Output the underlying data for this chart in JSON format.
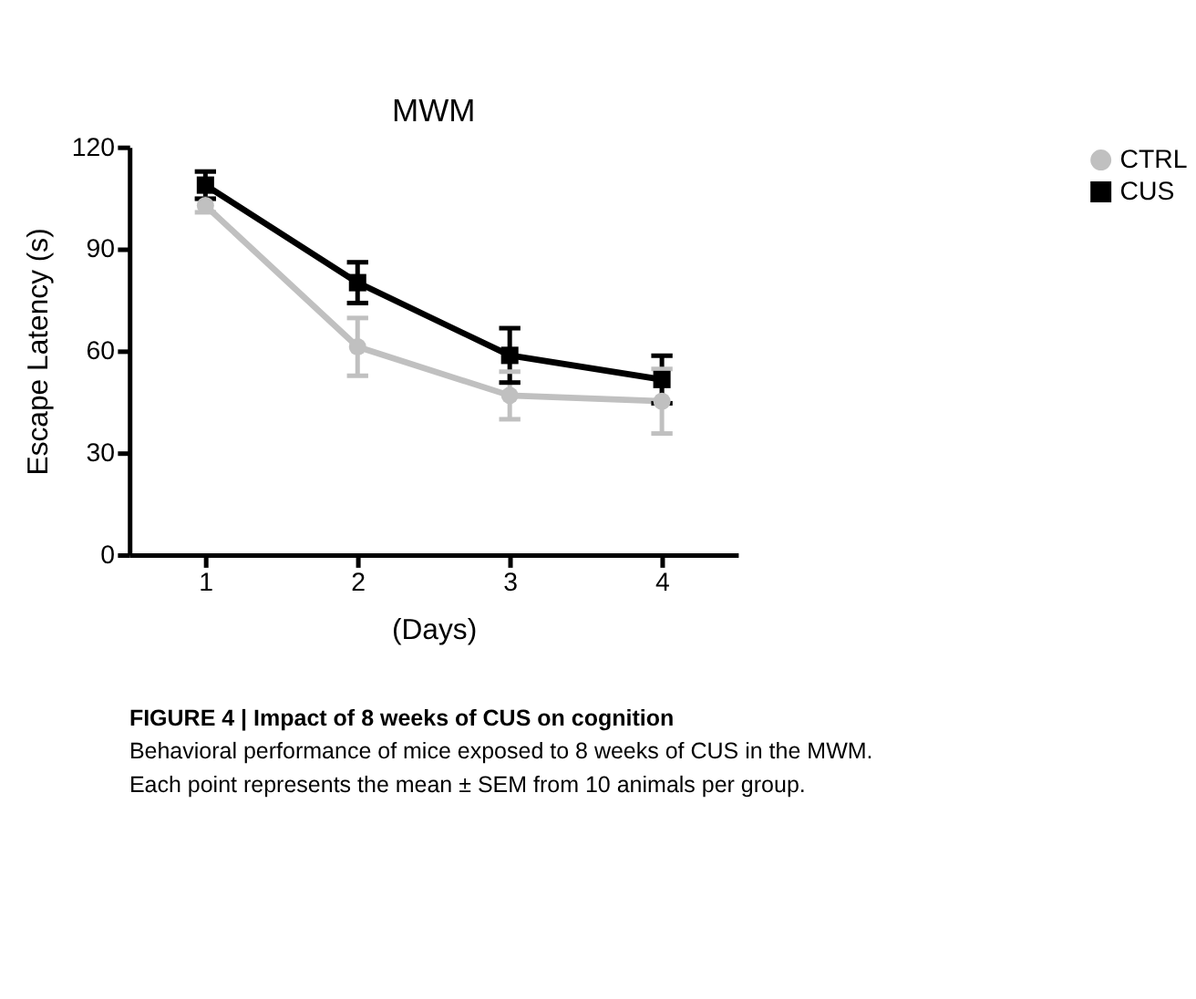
{
  "chart_data": {
    "type": "line",
    "title": "MWM",
    "xlabel": "(Days)",
    "ylabel": "Escape Latency (s)",
    "x": [
      1,
      2,
      3,
      4
    ],
    "xlim": [
      0.5,
      4.5
    ],
    "xticks": [
      1,
      2,
      3,
      4
    ],
    "ylim": [
      0,
      120
    ],
    "yticks": [
      0,
      30,
      60,
      90,
      120
    ],
    "grid": false,
    "legend": "top right",
    "line_style": "solid",
    "series": [
      {
        "name": "CTRL",
        "color": "#c0c0c0",
        "marker": "circle",
        "values": [
          102.8,
          61.2,
          46.9,
          45.2
        ],
        "errors": [
          2,
          8.5,
          7,
          9.5
        ]
      },
      {
        "name": "CUS",
        "color": "#000000",
        "marker": "square",
        "values": [
          108.8,
          80.1,
          58.7,
          51.6
        ],
        "errors": [
          4,
          6,
          8,
          7
        ]
      }
    ],
    "annotations": [
      "FIGURE 4 | Impact of 8 weeks of CUS on cognition",
      "Behavioral performance of mice exposed to 8 weeks of CUS in the MWM. Each point represents the mean ± SEM from 10 animals per group."
    ]
  }
}
